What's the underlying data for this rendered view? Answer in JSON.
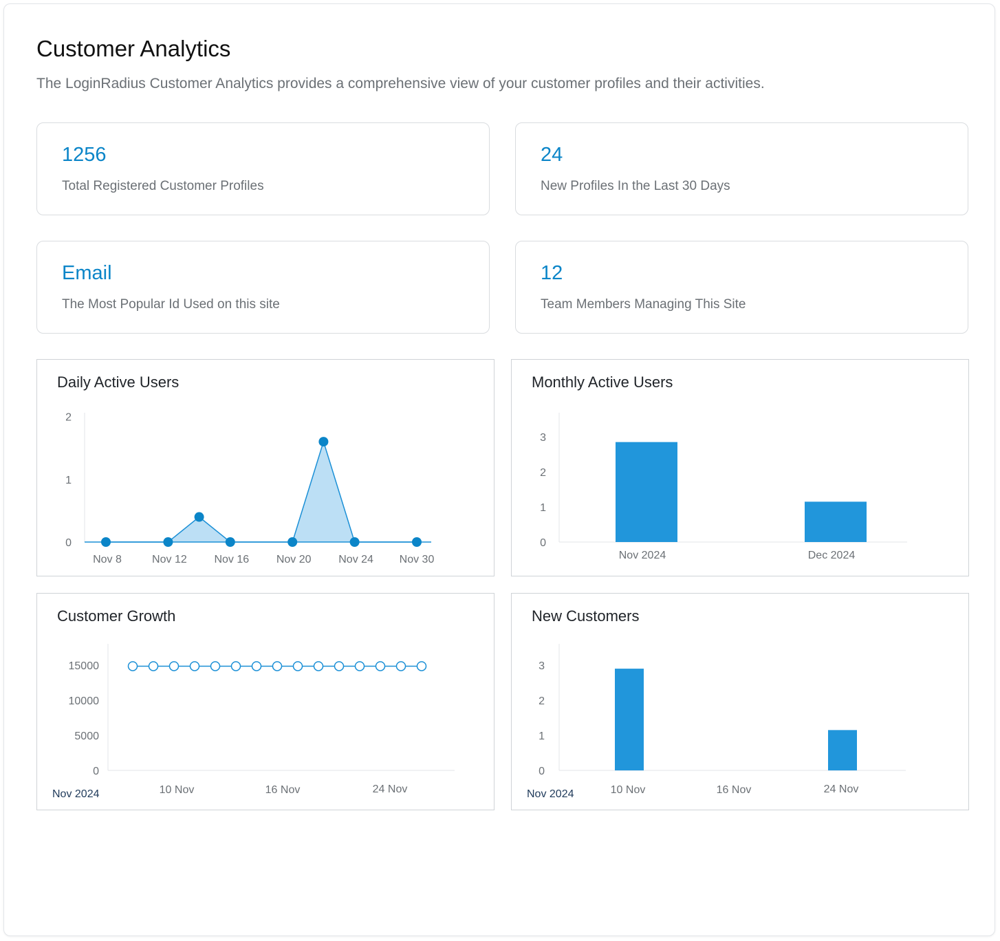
{
  "header": {
    "title": "Customer Analytics",
    "description": "The LoginRadius Customer Analytics provides a comprehensive view of your customer profiles and their activities."
  },
  "stats": [
    {
      "value": "1256",
      "label": "Total Registered Customer Profiles"
    },
    {
      "value": "24",
      "label": "New Profiles In the Last 30 Days"
    },
    {
      "value": "Email",
      "label": "The Most Popular Id Used on this site"
    },
    {
      "value": "12",
      "label": "Team Members Managing This Site"
    }
  ],
  "colors": {
    "accent": "#0b85c8",
    "bar": "#2196db",
    "line": "#1a8fd6",
    "area": "#bcdff5"
  },
  "chart_data": [
    {
      "id": "daily",
      "type": "area",
      "title": "Daily Active Users",
      "x_tick_labels": [
        "Nov 8",
        "Nov 12",
        "Nov 16",
        "Nov 20",
        "Nov 24",
        "Nov 30"
      ],
      "y_ticks": [
        "0",
        "1",
        "2"
      ],
      "ylim": [
        0,
        2.5
      ],
      "x": [
        8,
        12,
        14,
        16,
        20,
        22,
        24,
        28
      ],
      "values": [
        0,
        0,
        0.4,
        0,
        0,
        1.6,
        0,
        0
      ],
      "grid": false
    },
    {
      "id": "monthly",
      "type": "bar",
      "title": "Monthly Active Users",
      "categories": [
        "Nov 2024",
        "Dec 2024"
      ],
      "values": [
        2.85,
        1.15
      ],
      "y_ticks": [
        "0",
        "1",
        "2",
        "3"
      ],
      "ylim": [
        0,
        3.6
      ],
      "grid": false
    },
    {
      "id": "growth",
      "type": "line",
      "title": "Customer Growth",
      "base_label": "Nov 2024",
      "x_tick_labels": [
        "10 Nov",
        "16 Nov",
        "24 Nov"
      ],
      "y_ticks": [
        "0",
        "5000",
        "10000",
        "15000"
      ],
      "ylim": [
        0,
        17500
      ],
      "values": [
        15100,
        15100,
        15100,
        15100,
        15100,
        15100,
        15100,
        15100,
        15100,
        15100,
        15100,
        15100,
        15100,
        15100,
        15100
      ],
      "grid": false
    },
    {
      "id": "newcust",
      "type": "bar",
      "title": "New Customers",
      "base_label": "Nov 2024",
      "x_tick_labels": [
        "10 Nov",
        "16 Nov",
        "24 Nov"
      ],
      "categories": [
        "10 Nov",
        "24 Nov"
      ],
      "values": [
        2.9,
        1.15
      ],
      "y_ticks": [
        "0",
        "1",
        "2",
        "3"
      ],
      "ylim": [
        0,
        3.6
      ],
      "grid": false
    }
  ]
}
